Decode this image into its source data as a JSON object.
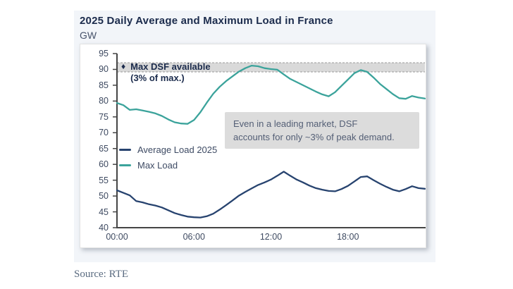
{
  "header": {
    "title": "2025 Daily Average and Maximum Load in France",
    "unit_label": "GW"
  },
  "band_annotation": {
    "diamond_icon": "♦",
    "line1": "Max DSF available",
    "line2": "(3% of max.)"
  },
  "callout": {
    "line1": "Even in a leading market, DSF",
    "line2": "accounts for only ~3% of peak demand."
  },
  "legend": [
    {
      "label": "Average Load 2025",
      "color": "#27436F"
    },
    {
      "label": "Max Load",
      "color": "#3BA39B"
    }
  ],
  "source": "Source: RTE",
  "colors": {
    "navy_line": "#27436F",
    "teal_line": "#3BA39B",
    "title_navy": "#1B2B4C",
    "band_fill": "#D9D9D9",
    "band_dash": "#9A9A9A",
    "callout_bg": "#DCDCDC",
    "axis": "#454545",
    "tick_label": "#3E4A61",
    "card_bg": "#F2F5F9"
  },
  "chart_data": {
    "type": "line",
    "title": "2025 Daily Average and Maximum Load in France",
    "ylabel": "GW",
    "xlim_hours": [
      0,
      24
    ],
    "ylim": [
      40,
      95
    ],
    "ytick_step": 5,
    "grid": false,
    "legend_position": "inside-left",
    "y_tick_labels": [
      "95",
      "90",
      "85",
      "80",
      "75",
      "70",
      "65",
      "60",
      "55",
      "50",
      "45",
      "40"
    ],
    "x_ticks": [
      {
        "hour": 0,
        "label": "00:00"
      },
      {
        "hour": 6,
        "label": "06:00"
      },
      {
        "hour": 12,
        "label": "12:00"
      },
      {
        "hour": 18,
        "label": "18:00"
      }
    ],
    "band": {
      "from_gw": 89.2,
      "to_gw": 92.1,
      "label": "Max DSF available (3% of max.)"
    },
    "x_hours": [
      0,
      0.5,
      1,
      1.5,
      2,
      2.5,
      3,
      3.5,
      4,
      4.5,
      5,
      5.5,
      6,
      6.5,
      7,
      7.5,
      8,
      8.5,
      9,
      9.5,
      10,
      10.5,
      11,
      11.5,
      12,
      12.5,
      13,
      13.5,
      14,
      14.5,
      15,
      15.5,
      16,
      16.5,
      17,
      17.5,
      18,
      18.5,
      19,
      19.5,
      20,
      20.5,
      21,
      21.5,
      22,
      22.5,
      23,
      23.5,
      24
    ],
    "series": [
      {
        "name": "Max Load",
        "color": "#3BA39B",
        "values": [
          79.4,
          78.7,
          77.2,
          77.4,
          77.0,
          76.6,
          76.1,
          75.3,
          74.2,
          73.3,
          72.9,
          72.8,
          74.0,
          76.5,
          79.5,
          82.3,
          84.5,
          86.3,
          87.8,
          89.3,
          90.4,
          91.2,
          91.0,
          90.4,
          90.1,
          89.9,
          88.4,
          87.0,
          86.0,
          85.0,
          84.0,
          83.0,
          82.1,
          81.5,
          82.8,
          84.8,
          86.8,
          88.8,
          89.8,
          89.2,
          87.4,
          85.4,
          83.8,
          82.2,
          80.9,
          80.7,
          81.6,
          81.1,
          80.8
        ]
      },
      {
        "name": "Average Load 2025",
        "color": "#27436F",
        "values": [
          51.8,
          51.0,
          50.2,
          48.4,
          48.0,
          47.4,
          47.0,
          46.4,
          45.5,
          44.6,
          44.0,
          43.5,
          43.3,
          43.2,
          43.6,
          44.4,
          45.7,
          47.1,
          48.6,
          50.1,
          51.3,
          52.4,
          53.5,
          54.3,
          55.2,
          56.4,
          57.7,
          56.4,
          55.2,
          54.3,
          53.3,
          52.5,
          52.0,
          51.6,
          51.5,
          52.2,
          53.2,
          54.6,
          56.0,
          56.2,
          55.0,
          53.9,
          52.9,
          52.0,
          51.5,
          52.2,
          53.1,
          52.5,
          52.3
        ]
      }
    ]
  }
}
